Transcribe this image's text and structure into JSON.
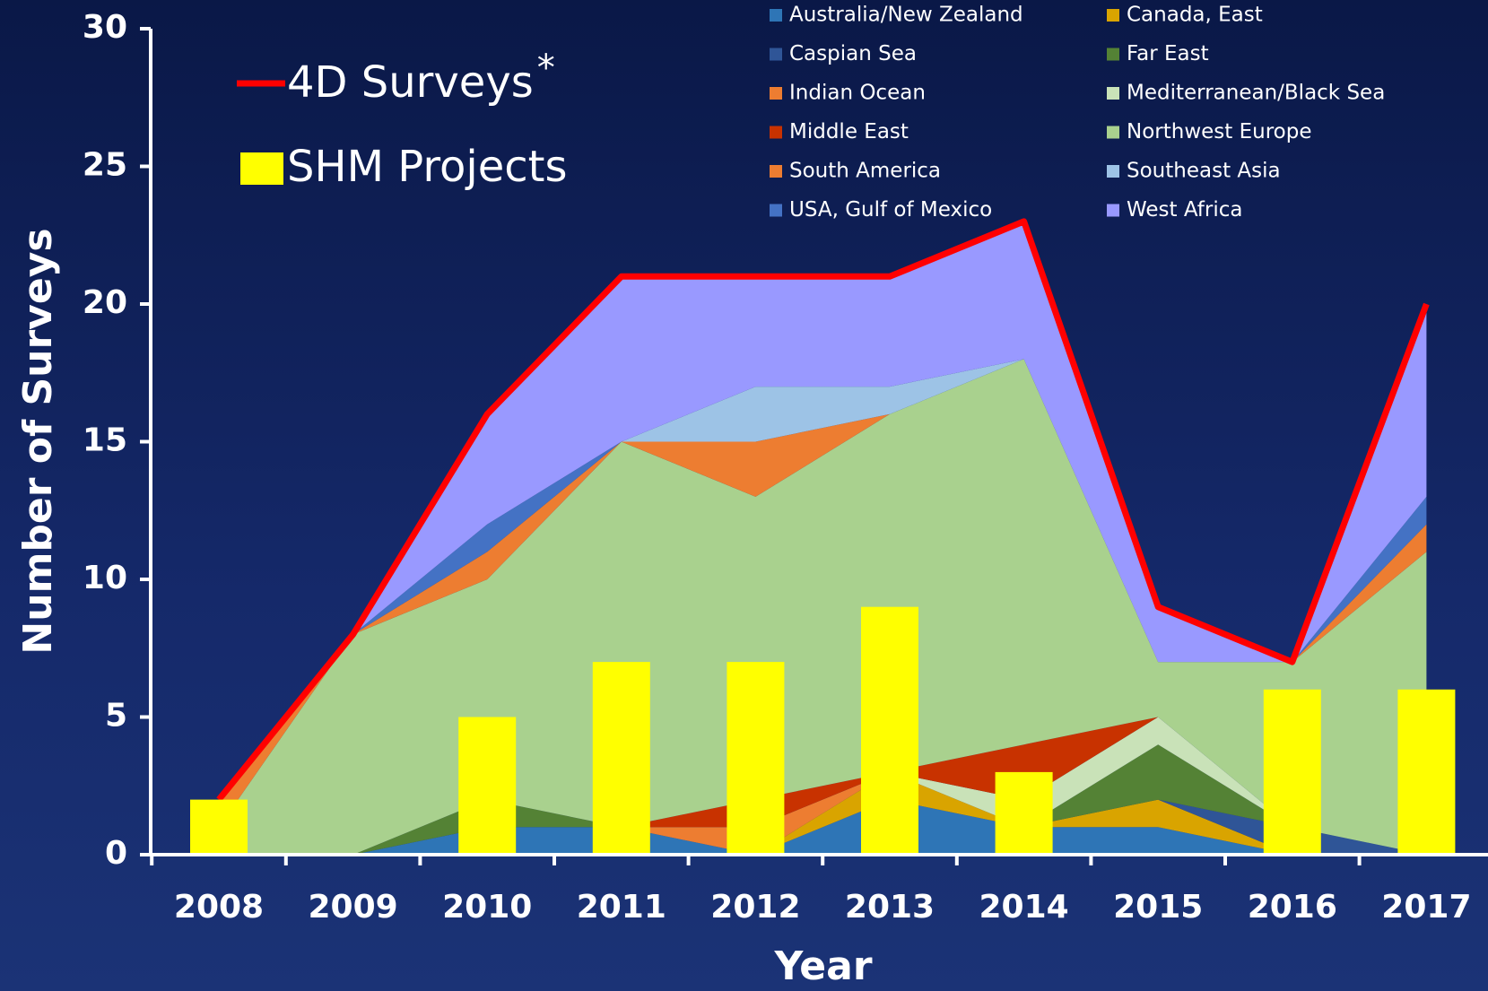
{
  "chart_data": {
    "type": "stacked-area",
    "x_label": "Year",
    "y_label": "Number of Surveys",
    "categories": [
      "2008",
      "2009",
      "2010",
      "2011",
      "2012",
      "2013",
      "2014",
      "2015",
      "2016",
      "2017"
    ],
    "ylim": [
      0,
      30
    ],
    "yticks": [
      0,
      5,
      10,
      15,
      20,
      25,
      30
    ],
    "grid": false,
    "series": [
      {
        "name": "Australia/New Zealand",
        "color": "#2e75b6",
        "values": [
          0,
          0,
          1,
          1,
          0,
          2,
          1,
          1,
          0,
          0
        ]
      },
      {
        "name": "Canada, East",
        "color": "#d9a400",
        "values": [
          0,
          0,
          0,
          0,
          0,
          1,
          0,
          1,
          0,
          0
        ]
      },
      {
        "name": "Caspian Sea",
        "color": "#2f5597",
        "values": [
          0,
          0,
          0,
          0,
          0,
          0,
          0,
          0,
          1,
          0
        ]
      },
      {
        "name": "Far East",
        "color": "#548235",
        "values": [
          0,
          0,
          1,
          0,
          0,
          0,
          0,
          2,
          0,
          0
        ]
      },
      {
        "name": "Indian Ocean",
        "color": "#ed7d31",
        "values": [
          0,
          0,
          0,
          0,
          1,
          0,
          0,
          0,
          0,
          0
        ]
      },
      {
        "name": "Mediterranean/Black Sea",
        "color": "#c9e2b8",
        "values": [
          0,
          0,
          0,
          0,
          0,
          0,
          1,
          1,
          0,
          0
        ]
      },
      {
        "name": "Middle East",
        "color": "#c83200",
        "values": [
          0,
          0,
          0,
          0,
          1,
          0,
          2,
          0,
          0,
          0
        ]
      },
      {
        "name": "Northwest Europe",
        "color": "#a9d18e",
        "values": [
          1,
          8,
          8,
          14,
          11,
          13,
          14,
          2,
          6,
          11
        ]
      },
      {
        "name": "South America",
        "color": "#ed7d31",
        "values": [
          1,
          0,
          1,
          0,
          2,
          0,
          0,
          0,
          0,
          1
        ]
      },
      {
        "name": "Southeast Asia",
        "color": "#9dc3e6",
        "values": [
          0,
          0,
          0,
          0,
          2,
          1,
          0,
          0,
          0,
          0
        ]
      },
      {
        "name": "USA, Gulf of Mexico",
        "color": "#4472c4",
        "values": [
          0,
          0,
          1,
          0,
          0,
          0,
          0,
          0,
          0,
          1
        ]
      },
      {
        "name": "West Africa",
        "color": "#9999ff",
        "values": [
          0,
          0,
          4,
          6,
          4,
          4,
          5,
          2,
          0,
          7
        ]
      }
    ],
    "line": {
      "name": "4D Surveys",
      "footnote_mark": "*",
      "color": "#ff0000",
      "values": [
        2,
        8,
        16,
        21,
        21,
        21,
        23,
        9,
        7,
        20
      ]
    },
    "bars": {
      "name": "SHM Projects",
      "color": "#ffff00",
      "values": [
        2,
        0,
        5,
        7,
        7,
        9,
        3,
        0,
        6,
        6
      ]
    }
  }
}
